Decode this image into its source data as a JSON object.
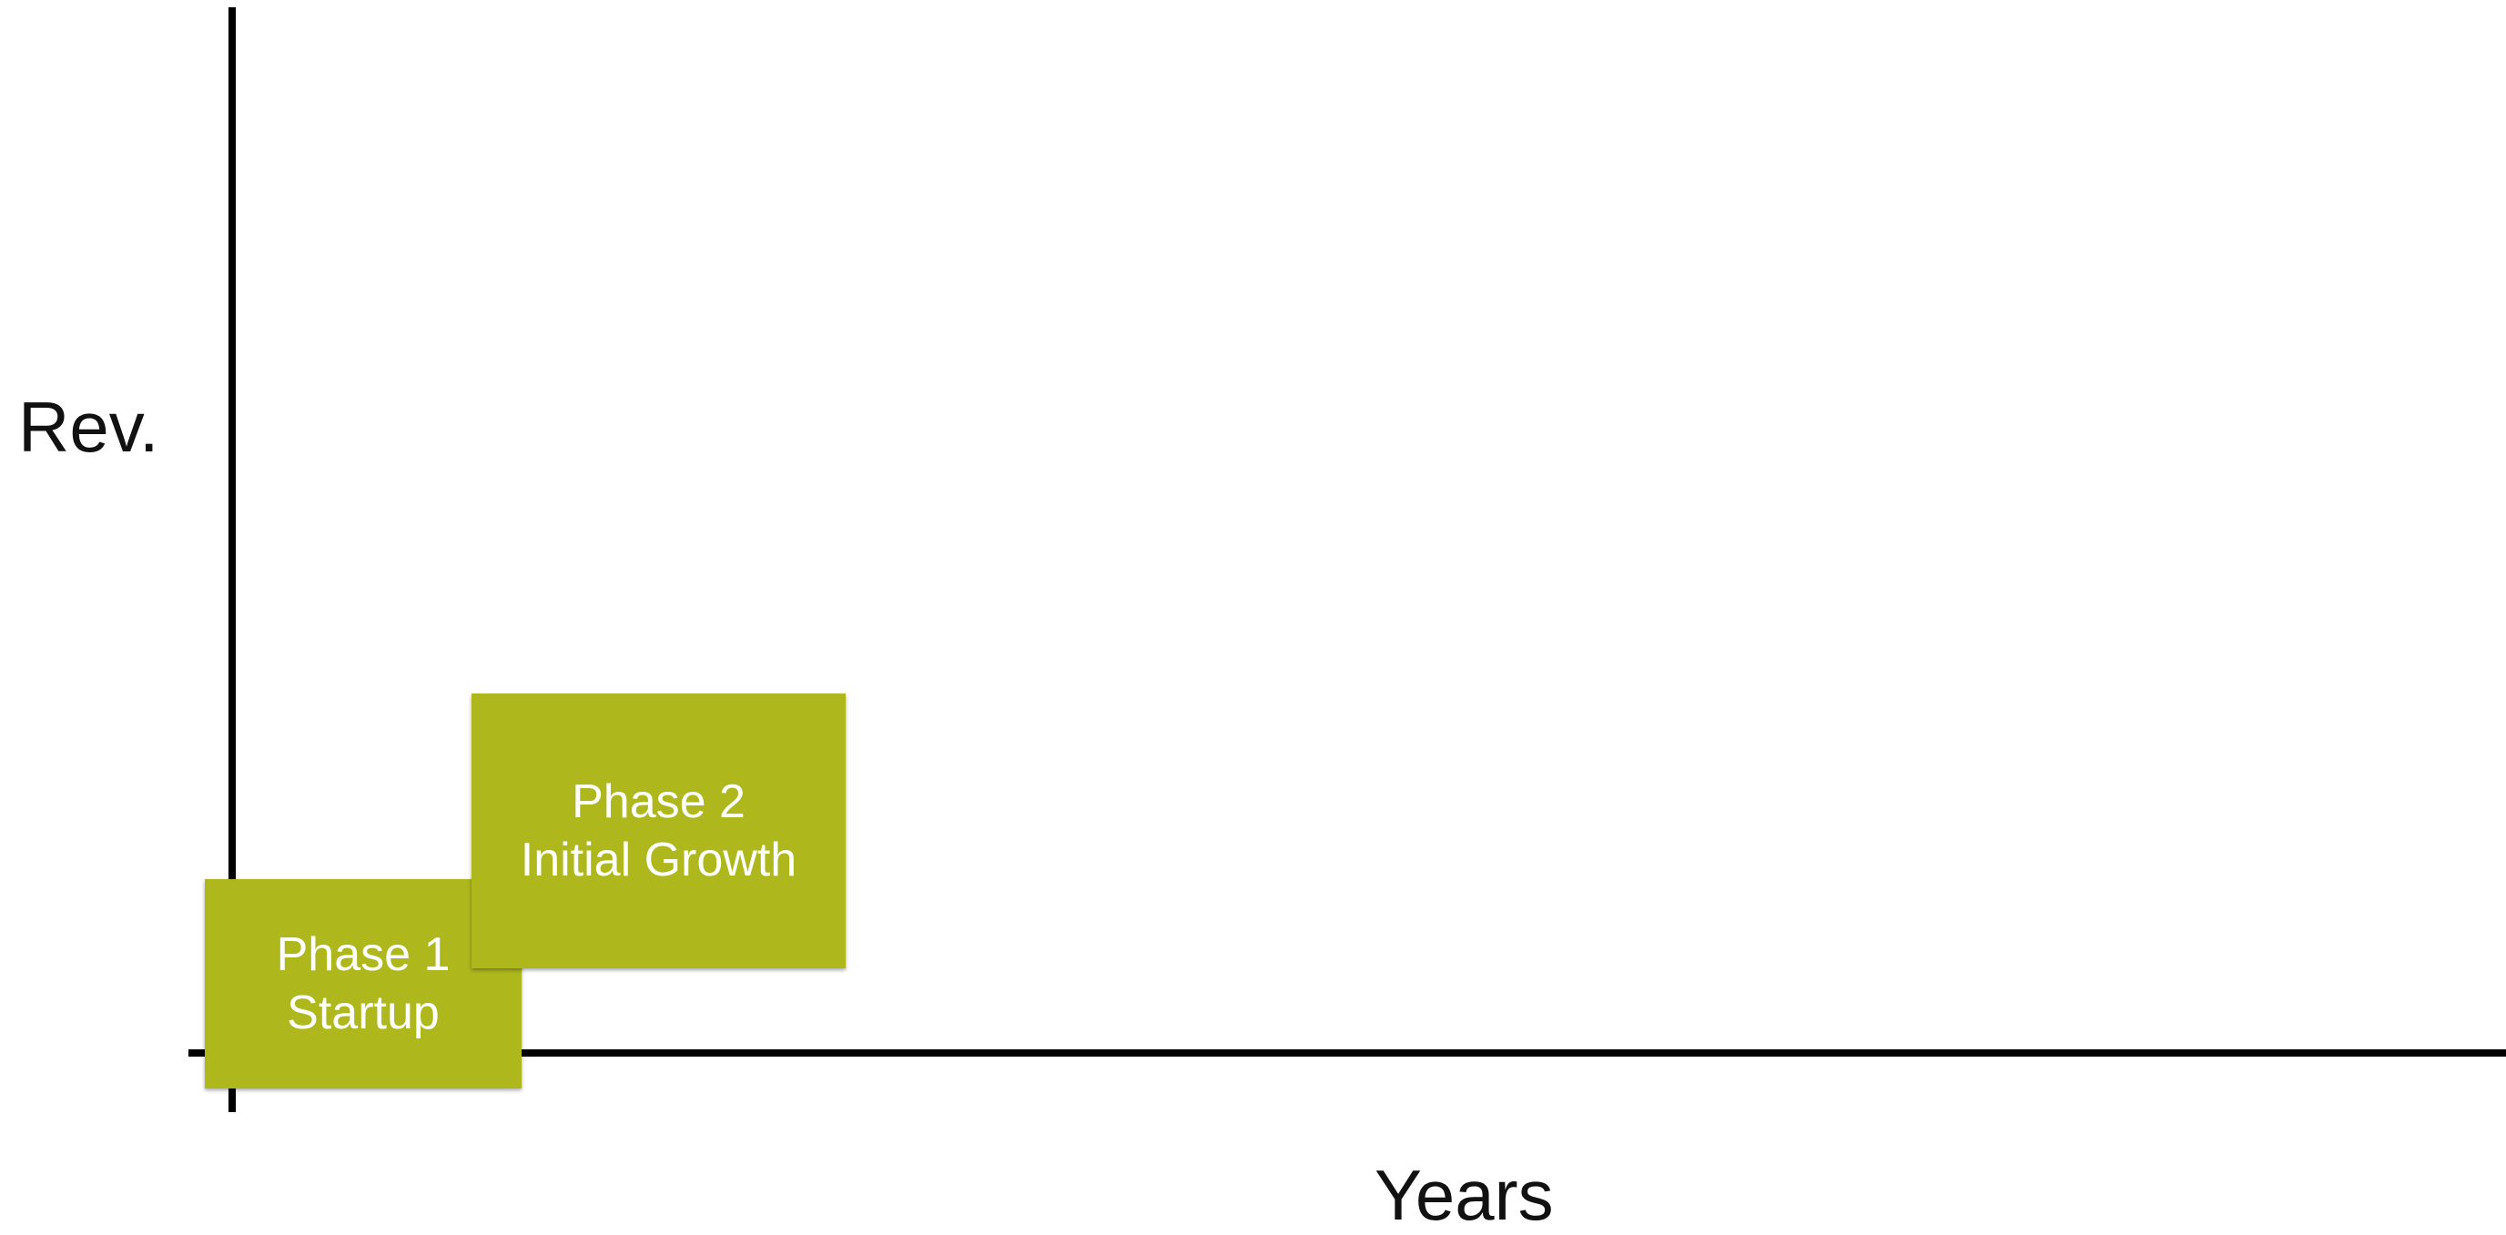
{
  "axes": {
    "y_label": "Rev.",
    "x_label": "Years"
  },
  "colors": {
    "axis": "#000000",
    "box_fill": "#AEB81D",
    "box_text": "#FFFFFF"
  },
  "phases": [
    {
      "line1": "Phase 1",
      "line2": "Startup"
    },
    {
      "line1": "Phase 2",
      "line2": "Initial Growth"
    }
  ]
}
